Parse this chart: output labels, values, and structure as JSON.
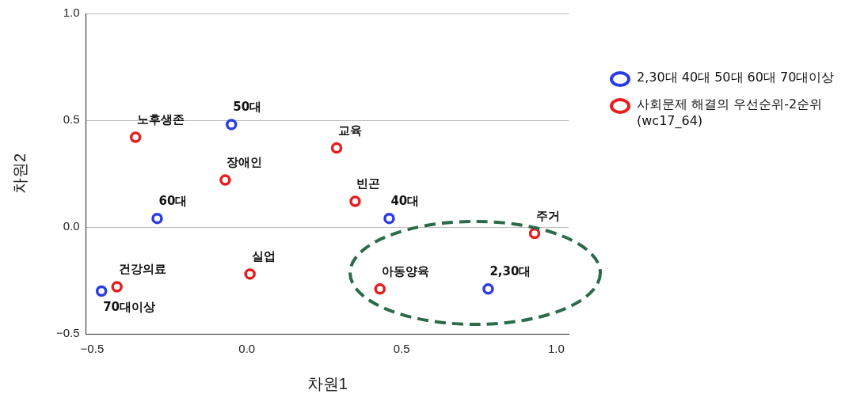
{
  "chart_data": {
    "type": "scatter",
    "xlabel": "차원1",
    "ylabel": "차원2",
    "xlim": [
      -0.52,
      1.04
    ],
    "ylim": [
      -0.5,
      1.0
    ],
    "xticks": [
      {
        "value": -0.5,
        "label": "−0.5"
      },
      {
        "value": 0,
        "label": "0.0"
      },
      {
        "value": 0.5,
        "label": "0.5"
      },
      {
        "value": 1,
        "label": "1.0"
      }
    ],
    "yticks": [
      {
        "value": -0.5,
        "label": "−0.5"
      },
      {
        "value": 0,
        "label": "0.0"
      },
      {
        "value": 0.5,
        "label": "0.5"
      },
      {
        "value": 1,
        "label": "1.0"
      }
    ],
    "grid": "y",
    "legend": "right",
    "marker": "circle",
    "series": [
      {
        "name": "2,30대 40대 50대 60대 70대이상",
        "color": "#2b3be6",
        "x": [
          -0.05,
          -0.29,
          0.46,
          0.78,
          -0.47
        ],
        "values": [
          0.48,
          0.04,
          0.04,
          -0.29,
          -0.3
        ]
      },
      {
        "name": "사회문제 해결의 우선순위-2순위 (wc17_64)",
        "color": "#e61e1e",
        "x": [
          -0.36,
          -0.07,
          0.29,
          0.35,
          0.93,
          0.01,
          0.43,
          -0.42
        ],
        "values": [
          0.42,
          0.22,
          0.37,
          0.12,
          -0.03,
          -0.22,
          -0.29,
          -0.28
        ]
      }
    ],
    "annotations": [
      {
        "text": "50대",
        "x": -0.05,
        "y": 0.48
      },
      {
        "text": "60대",
        "x": -0.29,
        "y": 0.04
      },
      {
        "text": "40대",
        "x": 0.46,
        "y": 0.04
      },
      {
        "text": "2,30대",
        "x": 0.78,
        "y": -0.29
      },
      {
        "text": "노후생존",
        "x": -0.36,
        "y": 0.42
      },
      {
        "text": "장애인",
        "x": -0.07,
        "y": 0.22
      },
      {
        "text": "교육",
        "x": 0.29,
        "y": 0.37
      },
      {
        "text": "빈곤",
        "x": 0.35,
        "y": 0.12
      },
      {
        "text": "주거",
        "x": 0.93,
        "y": -0.03
      },
      {
        "text": "실업",
        "x": 0.01,
        "y": -0.22
      },
      {
        "text": "아동양육",
        "x": 0.43,
        "y": -0.29
      },
      {
        "text": "건강의료",
        "x": -0.42,
        "y": -0.28
      },
      {
        "text": "70대이상",
        "x": -0.47,
        "y": -0.3
      }
    ]
  }
}
